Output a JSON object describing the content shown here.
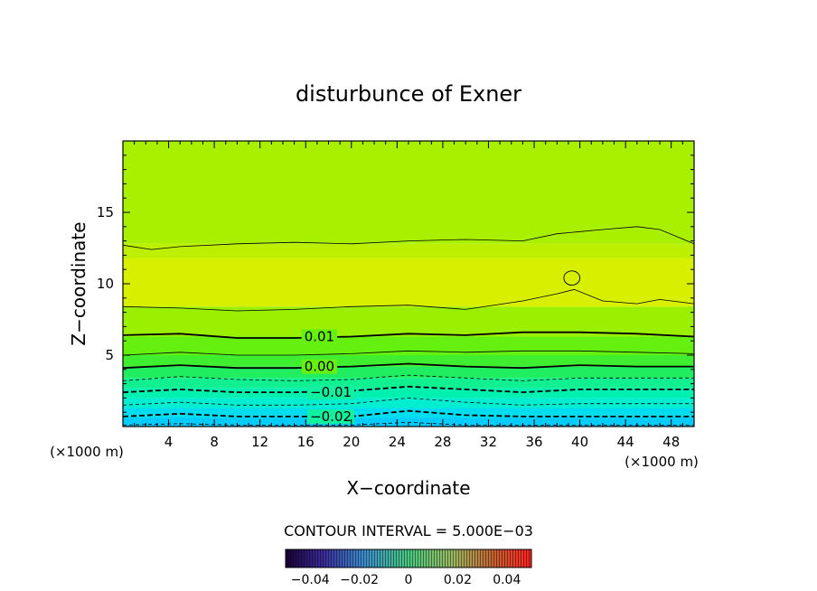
{
  "chart_data": {
    "type": "contour",
    "title": "disturbunce of Exner",
    "xlabel": "X−coordinate",
    "ylabel": "Z−coordinate",
    "x_unit": "(×1000 m)",
    "y_unit": "(×1000 m)",
    "xlim": [
      0,
      50
    ],
    "ylim": [
      0,
      20
    ],
    "x_ticks": [
      4,
      8,
      12,
      16,
      20,
      24,
      28,
      32,
      36,
      40,
      44,
      48
    ],
    "x_tick_labels": [
      "4",
      "8",
      "12",
      "16",
      "20",
      "24",
      "28",
      "32",
      "36",
      "40",
      "44",
      "48"
    ],
    "y_ticks": [
      5,
      10,
      15
    ],
    "y_tick_labels": [
      "5",
      "10",
      "15"
    ],
    "contour_interval_text": "CONTOUR INTERVAL = 5.000E−03",
    "contour_labels": [
      {
        "text": "0.01",
        "x": 17.2,
        "z": 6.3
      },
      {
        "text": "0.00",
        "x": 17.2,
        "z": 4.2
      },
      {
        "text": "−0.01",
        "x": 18.2,
        "z": 2.4
      },
      {
        "text": "−0.02",
        "x": 18.2,
        "z": 0.7
      }
    ],
    "colorbar": {
      "min": -0.05,
      "max": 0.05,
      "ticks": [
        -0.04,
        -0.02,
        0,
        0.02,
        0.04
      ],
      "tick_labels": [
        "−0.04",
        "−0.02",
        "0",
        "0.02",
        "0.04"
      ]
    },
    "fill_bands": [
      {
        "z0": 0.0,
        "z1": 0.6,
        "color": "#00ccff"
      },
      {
        "z0": 0.6,
        "z1": 1.3,
        "color": "#00ddee"
      },
      {
        "z0": 1.3,
        "z1": 2.0,
        "color": "#00eed0"
      },
      {
        "z0": 2.0,
        "z1": 2.7,
        "color": "#00f0b0"
      },
      {
        "z0": 2.7,
        "z1": 3.4,
        "color": "#10f090"
      },
      {
        "z0": 3.4,
        "z1": 4.2,
        "color": "#20ee60"
      },
      {
        "z0": 4.2,
        "z1": 5.0,
        "color": "#40ee30"
      },
      {
        "z0": 5.0,
        "z1": 6.3,
        "color": "#66f010"
      },
      {
        "z0": 6.3,
        "z1": 8.4,
        "color": "#9af000"
      },
      {
        "z0": 8.4,
        "z1": 11.8,
        "color": "#d8f000"
      },
      {
        "z0": 11.8,
        "z1": 12.8,
        "color": "#bcf000"
      },
      {
        "z0": 12.8,
        "z1": 20.0,
        "color": "#a8f000"
      }
    ],
    "contours": [
      {
        "level": -0.025,
        "dashed": true,
        "bold": false,
        "x": [
          0,
          5,
          10,
          15,
          20,
          25,
          30,
          35,
          40,
          45,
          50
        ],
        "z": [
          0.1,
          0.2,
          0.1,
          0.1,
          0.1,
          0.3,
          0.1,
          0.1,
          0.1,
          0.1,
          0.1
        ]
      },
      {
        "level": -0.02,
        "dashed": true,
        "bold": true,
        "x": [
          0,
          5,
          10,
          15,
          20,
          25,
          30,
          35,
          40,
          45,
          50
        ],
        "z": [
          0.7,
          0.9,
          0.7,
          0.7,
          0.7,
          1.1,
          0.8,
          0.7,
          0.7,
          0.7,
          0.7
        ]
      },
      {
        "level": -0.015,
        "dashed": true,
        "bold": false,
        "x": [
          0,
          5,
          10,
          15,
          20,
          25,
          30,
          35,
          40,
          45,
          50
        ],
        "z": [
          1.5,
          1.7,
          1.5,
          1.5,
          1.6,
          2.0,
          1.7,
          1.5,
          1.6,
          1.6,
          1.6
        ]
      },
      {
        "level": -0.01,
        "dashed": true,
        "bold": true,
        "x": [
          0,
          5,
          10,
          15,
          20,
          25,
          30,
          35,
          40,
          45,
          50
        ],
        "z": [
          2.4,
          2.6,
          2.4,
          2.4,
          2.5,
          2.8,
          2.6,
          2.4,
          2.6,
          2.6,
          2.6
        ]
      },
      {
        "level": -0.005,
        "dashed": true,
        "bold": false,
        "x": [
          0,
          5,
          10,
          15,
          20,
          25,
          30,
          35,
          40,
          45,
          50
        ],
        "z": [
          3.2,
          3.5,
          3.3,
          3.2,
          3.3,
          3.6,
          3.4,
          3.2,
          3.4,
          3.4,
          3.4
        ]
      },
      {
        "level": 0.0,
        "dashed": false,
        "bold": true,
        "x": [
          0,
          5,
          10,
          15,
          20,
          25,
          30,
          35,
          40,
          45,
          50
        ],
        "z": [
          4.1,
          4.3,
          4.1,
          4.1,
          4.2,
          4.4,
          4.2,
          4.1,
          4.3,
          4.2,
          4.2
        ]
      },
      {
        "level": 0.005,
        "dashed": false,
        "bold": false,
        "x": [
          0,
          5,
          10,
          15,
          20,
          25,
          30,
          35,
          40,
          45,
          50
        ],
        "z": [
          5.0,
          5.2,
          5.0,
          5.0,
          5.1,
          5.3,
          5.2,
          5.3,
          5.3,
          5.2,
          5.1
        ]
      },
      {
        "level": 0.01,
        "dashed": false,
        "bold": true,
        "x": [
          0,
          5,
          10,
          15,
          20,
          25,
          30,
          35,
          40,
          45,
          50
        ],
        "z": [
          6.4,
          6.5,
          6.2,
          6.2,
          6.3,
          6.5,
          6.4,
          6.6,
          6.6,
          6.5,
          6.3
        ]
      },
      {
        "level": 0.015,
        "dashed": false,
        "bold": false,
        "x": [
          0,
          5,
          10,
          15,
          20,
          25,
          30,
          35,
          38,
          39.5,
          42,
          45,
          47,
          50
        ],
        "z": [
          8.4,
          8.3,
          8.1,
          8.2,
          8.4,
          8.5,
          8.2,
          8.8,
          9.3,
          9.6,
          8.8,
          8.6,
          8.9,
          8.6
        ]
      },
      {
        "level": 0.015,
        "dashed": false,
        "bold": false,
        "x": [
          0,
          2.5,
          5,
          10,
          15,
          20,
          25,
          30,
          35,
          38,
          42,
          45,
          47,
          50
        ],
        "z": [
          12.7,
          12.4,
          12.6,
          12.8,
          12.9,
          12.8,
          13.0,
          13.1,
          13.0,
          13.5,
          13.8,
          14.0,
          13.8,
          12.8
        ]
      }
    ],
    "closed_contours": [
      {
        "level": 0.02,
        "cx": 39.3,
        "cz": 10.4,
        "rx": 0.7,
        "rz": 0.5
      }
    ]
  }
}
